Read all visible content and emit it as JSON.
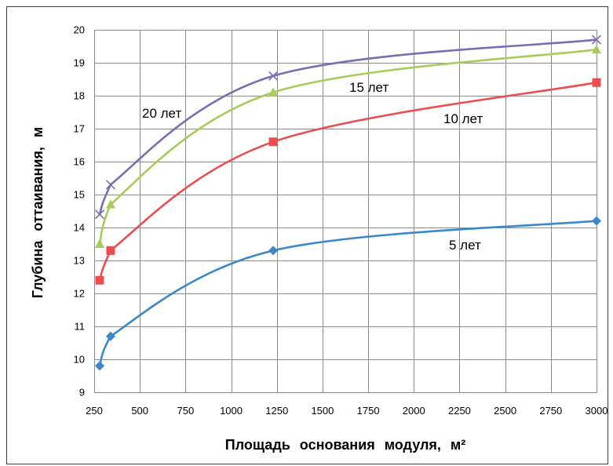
{
  "chart_data": {
    "type": "line",
    "smooth": true,
    "xlabel": "Площадь основания модуля, м²",
    "ylabel": "Глубина оттаивания, м",
    "xlim": [
      250,
      3000
    ],
    "ylim": [
      9,
      20
    ],
    "xticks": [
      250,
      500,
      750,
      1000,
      1250,
      1500,
      1750,
      2000,
      2250,
      2500,
      2750,
      3000
    ],
    "yticks": [
      9,
      10,
      11,
      12,
      13,
      14,
      15,
      16,
      17,
      18,
      19,
      20
    ],
    "grid": true,
    "x": [
      280,
      340,
      1230,
      3000
    ],
    "series": [
      {
        "name": "5 лет",
        "values": [
          9.8,
          10.7,
          13.3,
          14.2
        ],
        "color": "#3a87c9",
        "marker": "diamond"
      },
      {
        "name": "10 лет",
        "values": [
          12.4,
          13.3,
          16.6,
          18.4
        ],
        "color": "#ea4f4f",
        "marker": "square"
      },
      {
        "name": "15 лет",
        "values": [
          13.5,
          14.7,
          18.1,
          19.4
        ],
        "color": "#a6cc5a",
        "marker": "triangle"
      },
      {
        "name": "20 лет",
        "values": [
          14.4,
          15.3,
          18.6,
          19.7
        ],
        "color": "#7d6bb3",
        "marker": "x"
      }
    ]
  }
}
